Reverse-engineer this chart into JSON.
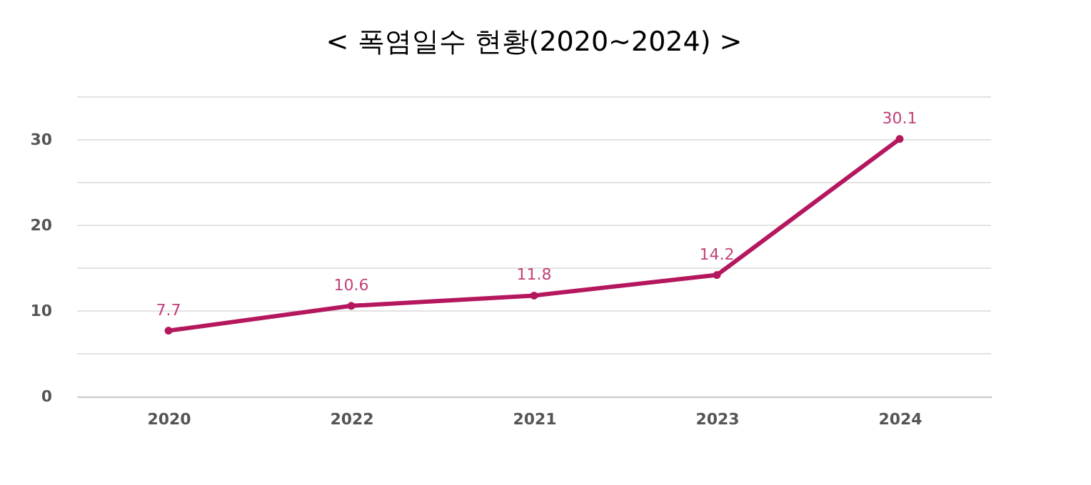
{
  "chart_data": {
    "type": "line",
    "title": "< 폭염일수 현황(2020~2024) >",
    "categories": [
      "2020",
      "2022",
      "2021",
      "2023",
      "2024"
    ],
    "series": [
      {
        "color": "#b5175e",
        "values": [
          7.7,
          10.6,
          11.8,
          14.2,
          30.1
        ]
      }
    ],
    "ylim": [
      0,
      35
    ],
    "yticks": [
      0,
      {
        "value": 5,
        "label": null
      },
      10,
      {
        "value": 15,
        "label": null
      },
      20,
      {
        "value": 25,
        "label": null
      },
      30,
      {
        "value": 35,
        "label": null
      }
    ],
    "grid": "y",
    "marker": "circle",
    "data_labels": true,
    "line_style": "solid"
  }
}
